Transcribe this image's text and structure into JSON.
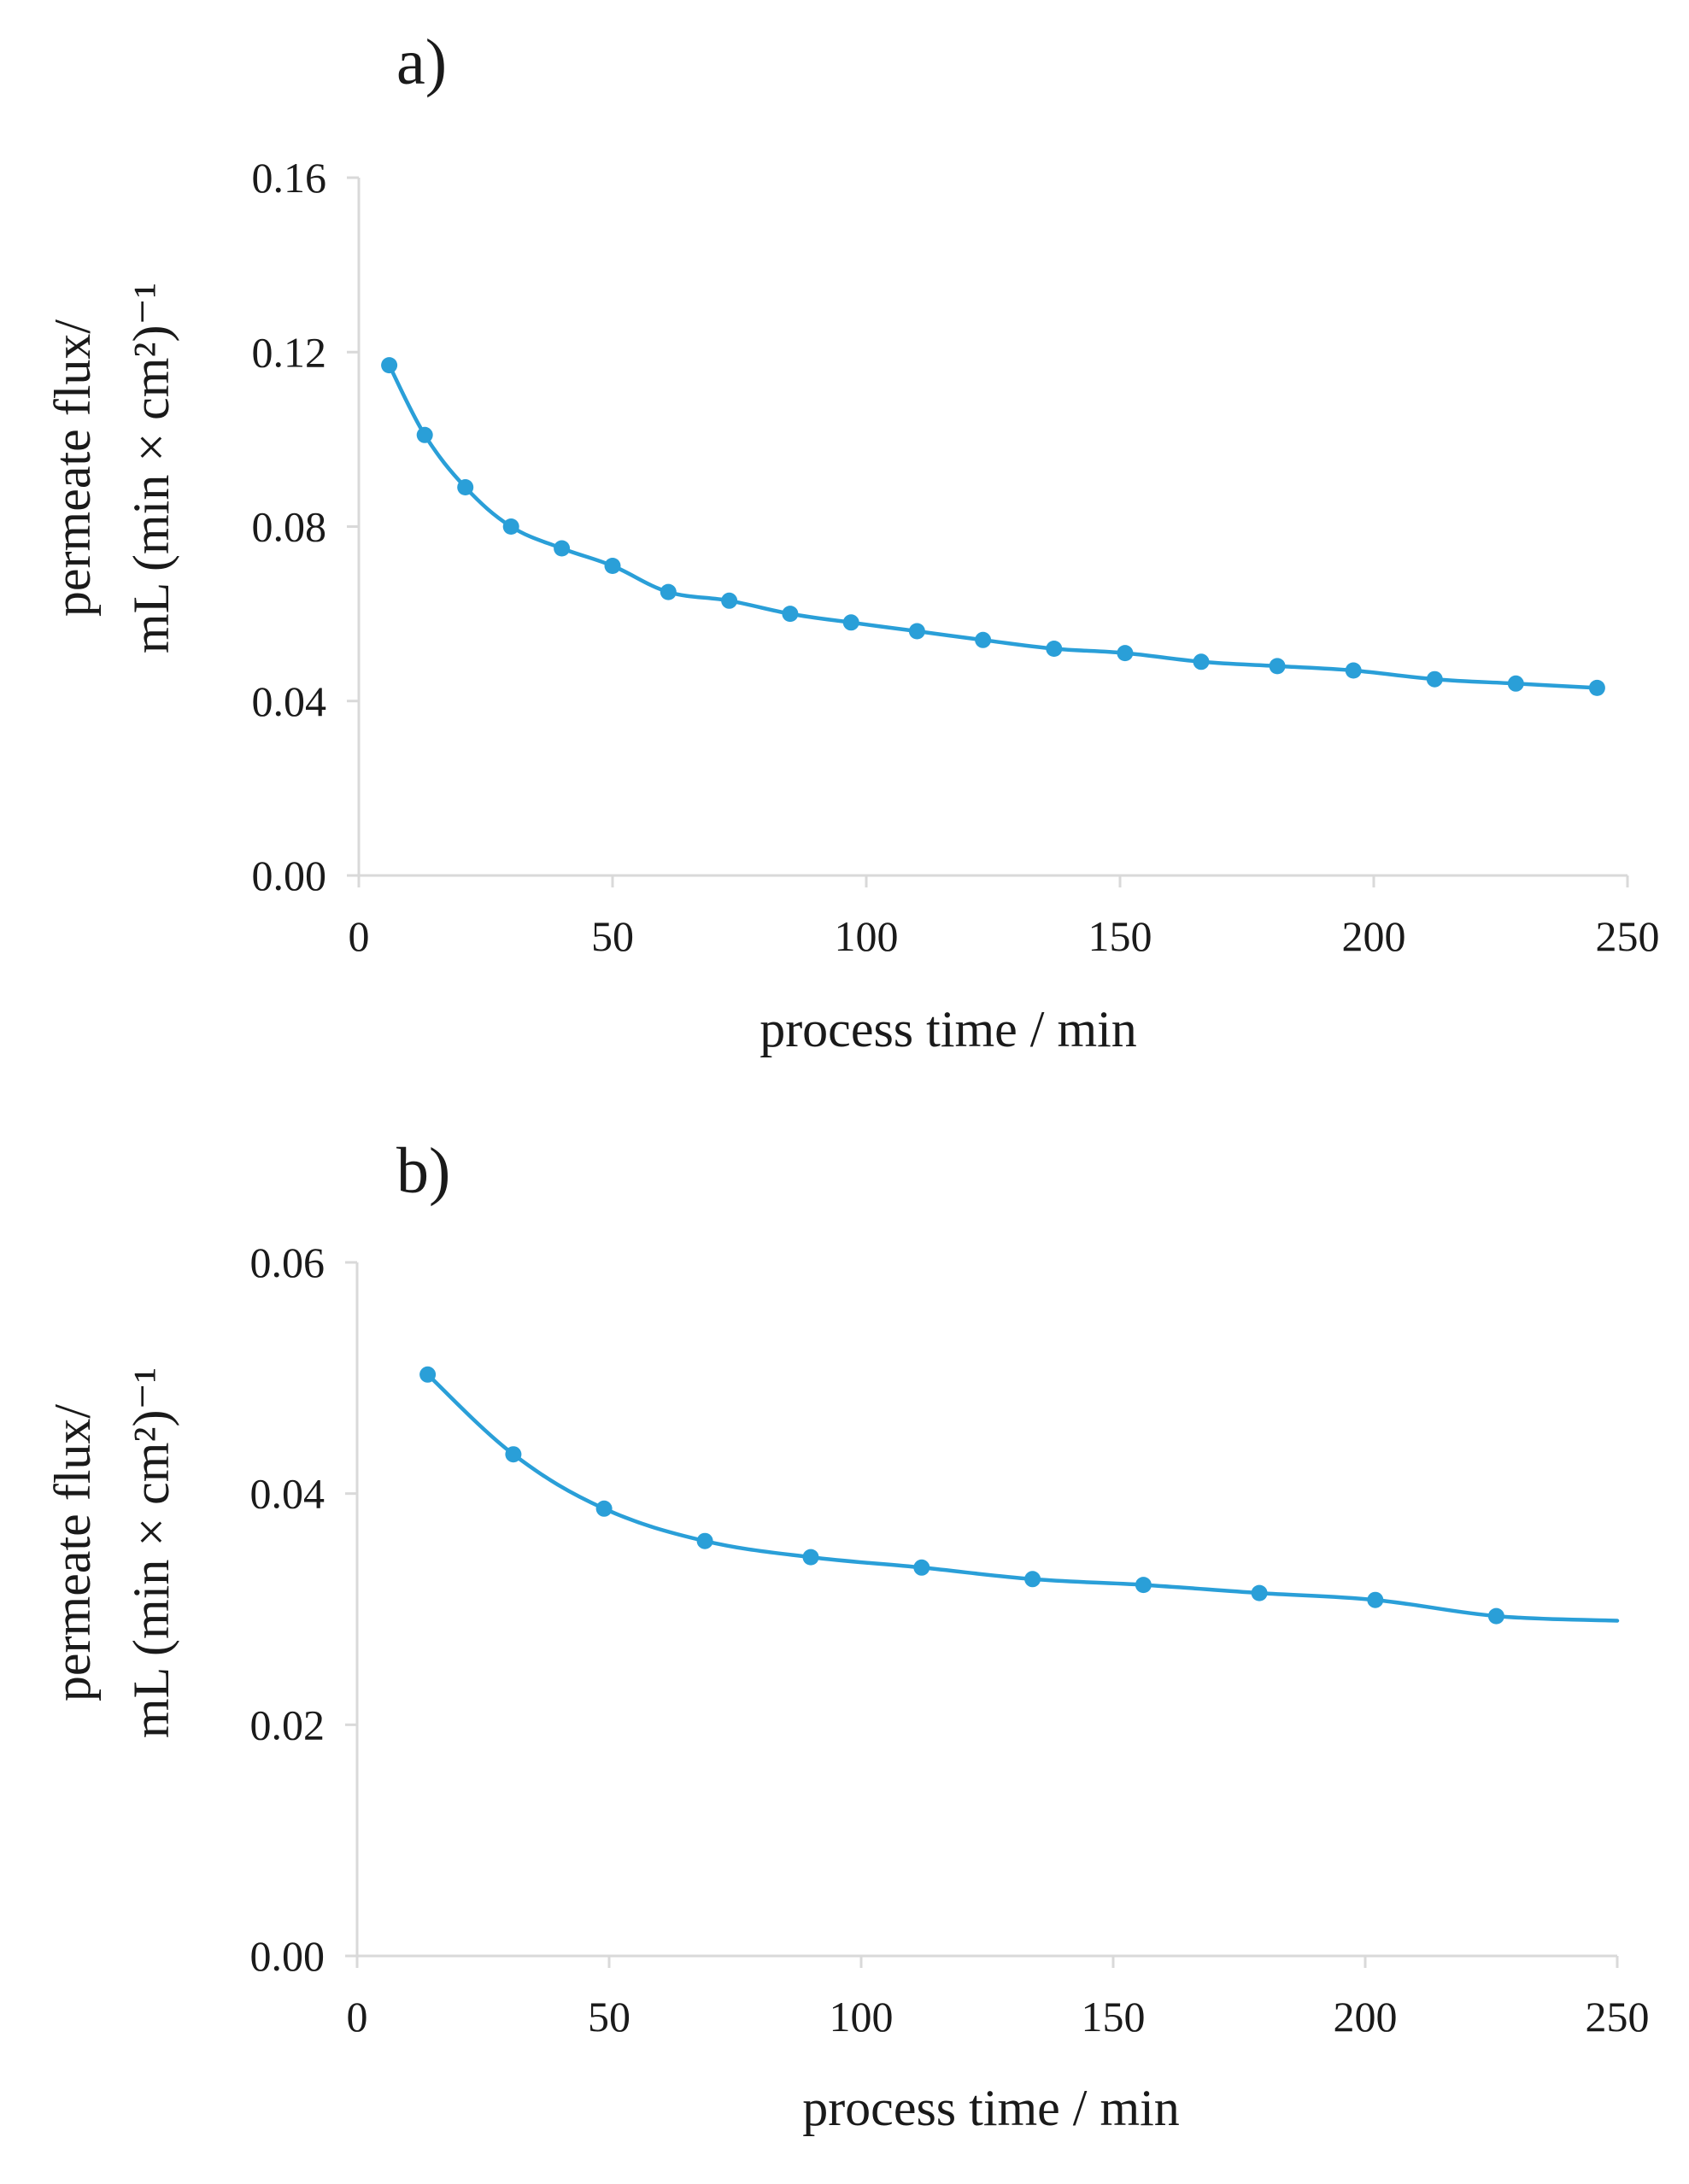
{
  "colors": {
    "series": "#2a9fd8",
    "axis": "#d9d9d9",
    "text": "#1a1a1a"
  },
  "chart_data": [
    {
      "type": "line",
      "panel_label": "a)",
      "xlabel": "process time / min",
      "ylabel_line1": "permeate flux/",
      "ylabel_line2": "mL (min × cm²)⁻¹",
      "xlim": [
        0,
        250
      ],
      "ylim": [
        0,
        0.16
      ],
      "xticks": [
        0,
        50,
        100,
        150,
        200,
        250
      ],
      "xtick_labels": [
        "0",
        "50",
        "100",
        "150",
        "200",
        "250"
      ],
      "yticks": [
        0,
        0.04,
        0.08,
        0.12,
        0.16
      ],
      "ytick_labels": [
        "0.00",
        "0.04",
        "0.08",
        "0.12",
        "0.16"
      ],
      "grid": false,
      "markers": true,
      "series": [
        {
          "name": "permeate flux",
          "x": [
            6,
            13,
            21,
            30,
            40,
            50,
            61,
            73,
            85,
            97,
            110,
            123,
            137,
            151,
            166,
            181,
            196,
            212,
            228,
            244
          ],
          "y": [
            0.117,
            0.101,
            0.089,
            0.08,
            0.075,
            0.071,
            0.065,
            0.063,
            0.06,
            0.058,
            0.056,
            0.054,
            0.052,
            0.051,
            0.049,
            0.048,
            0.047,
            0.045,
            0.044,
            0.043
          ]
        }
      ]
    },
    {
      "type": "line",
      "panel_label": "b)",
      "xlabel": "process time / min",
      "ylabel_line1": "permeate flux/",
      "ylabel_line2": "mL (min × cm²)⁻¹",
      "xlim": [
        0,
        250
      ],
      "ylim": [
        0,
        0.06
      ],
      "xticks": [
        0,
        50,
        100,
        150,
        200,
        250
      ],
      "xtick_labels": [
        "0",
        "50",
        "100",
        "150",
        "200",
        "250"
      ],
      "yticks": [
        0,
        0.02,
        0.04,
        0.06
      ],
      "ytick_labels": [
        "0.00",
        "0.02",
        "0.04",
        "0.06"
      ],
      "grid": false,
      "markers": true,
      "series": [
        {
          "name": "permeate flux",
          "x": [
            14,
            31,
            49,
            69,
            90,
            112,
            134,
            156,
            179,
            202,
            226,
            250
          ],
          "y": [
            0.0503,
            0.0434,
            0.0387,
            0.0359,
            0.0345,
            0.0336,
            0.0326,
            0.0321,
            0.0314,
            0.0308,
            0.0294,
            0.029
          ],
          "marker_count": 11
        }
      ]
    }
  ]
}
